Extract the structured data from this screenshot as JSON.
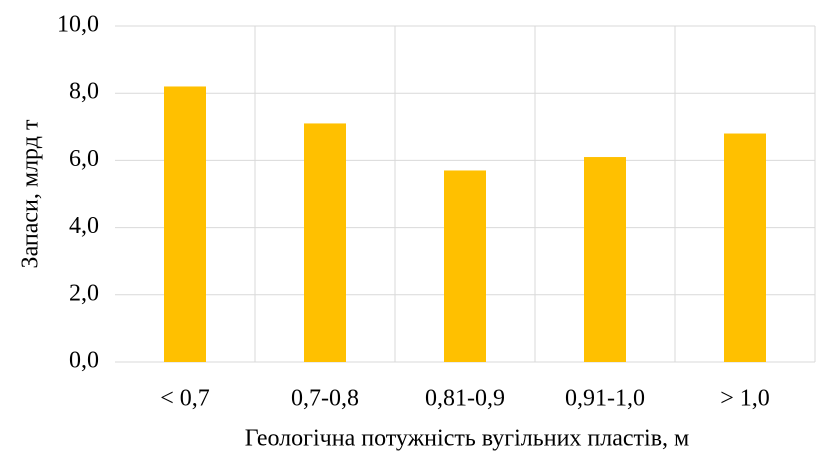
{
  "chart_data": {
    "type": "bar",
    "x_label": "Геологічна потужність вугільних пластів, м",
    "y_label": "Запаси, млрд т",
    "categories": [
      "< 0,7",
      "0,7-0,8",
      "0,81-0,9",
      "0,91-1,0",
      "> 1,0"
    ],
    "values": [
      8.2,
      7.1,
      5.7,
      6.1,
      6.8
    ],
    "color": "#ffc000",
    "ylim": [
      0,
      10
    ],
    "yticks": [
      {
        "value": 0,
        "label": "0,0"
      },
      {
        "value": 2,
        "label": "2,0"
      },
      {
        "value": 4,
        "label": "4,0"
      },
      {
        "value": 6,
        "label": "6,0"
      },
      {
        "value": 8,
        "label": "8,0"
      },
      {
        "value": 10,
        "label": "10,0"
      }
    ],
    "grid": true
  }
}
